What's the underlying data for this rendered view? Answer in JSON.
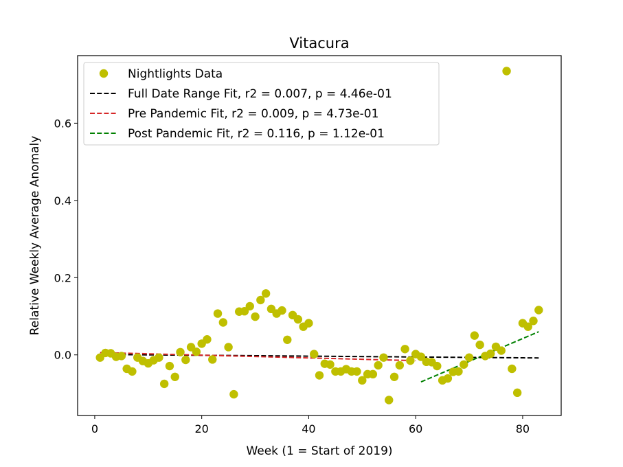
{
  "chart_data": {
    "type": "scatter",
    "title": "Vitacura",
    "xlabel": "Week (1 = Start of 2019)",
    "ylabel": "Relative Weekly Average Anomaly",
    "xlim": [
      -3.2,
      87.2
    ],
    "ylim": [
      -0.157,
      0.775
    ],
    "xticks": [
      0,
      20,
      40,
      60,
      80
    ],
    "yticks": [
      0.0,
      0.2,
      0.4,
      0.6
    ],
    "ytick_labels": [
      "0.0",
      "0.2",
      "0.4",
      "0.6"
    ],
    "grid": false,
    "legend_position": "top-left",
    "series": [
      {
        "name": "Nightlights Data",
        "kind": "scatter",
        "color": "#bfbf00",
        "x": [
          1,
          2,
          3,
          4,
          5,
          6,
          7,
          8,
          9,
          10,
          11,
          12,
          13,
          14,
          15,
          16,
          17,
          18,
          19,
          20,
          21,
          22,
          23,
          24,
          25,
          26,
          27,
          28,
          29,
          30,
          31,
          32,
          33,
          34,
          35,
          36,
          37,
          38,
          39,
          40,
          41,
          42,
          43,
          44,
          45,
          46,
          47,
          48,
          49,
          50,
          51,
          52,
          53,
          54,
          55,
          56,
          57,
          58,
          59,
          60,
          61,
          62,
          63,
          64,
          65,
          66,
          67,
          68,
          69,
          70,
          71,
          72,
          73,
          74,
          75,
          76,
          77,
          78,
          79,
          80,
          81,
          82,
          83
        ],
        "y": [
          -0.007,
          0.005,
          0.004,
          -0.005,
          -0.003,
          -0.036,
          -0.043,
          -0.007,
          -0.016,
          -0.022,
          -0.014,
          -0.007,
          -0.075,
          -0.029,
          -0.057,
          0.007,
          -0.013,
          0.02,
          0.008,
          0.029,
          0.04,
          -0.012,
          0.107,
          0.084,
          0.02,
          -0.102,
          0.112,
          0.113,
          0.126,
          0.099,
          0.142,
          0.159,
          0.119,
          0.107,
          0.115,
          0.039,
          0.103,
          0.092,
          0.073,
          0.082,
          0.002,
          -0.053,
          -0.023,
          -0.025,
          -0.043,
          -0.043,
          -0.037,
          -0.043,
          -0.043,
          -0.066,
          -0.05,
          -0.05,
          -0.027,
          -0.007,
          -0.117,
          -0.057,
          -0.027,
          0.015,
          -0.015,
          0.002,
          -0.005,
          -0.018,
          -0.019,
          -0.029,
          -0.066,
          -0.061,
          -0.044,
          -0.043,
          -0.025,
          -0.007,
          0.05,
          0.026,
          -0.003,
          0.003,
          0.021,
          0.011,
          0.735,
          -0.036,
          -0.098,
          0.082,
          0.073,
          0.088,
          0.116
        ]
      },
      {
        "name": "Full Date Range Fit, r2 = 0.007, p = 4.46e-01",
        "kind": "line",
        "color": "#000000",
        "x": [
          1,
          83
        ],
        "y": [
          0.001,
          -0.008
        ]
      },
      {
        "name": "Pre Pandemic Fit, r2 = 0.009, p = 4.73e-01",
        "kind": "line",
        "color": "#d62728",
        "x": [
          1,
          60
        ],
        "y": [
          0.006,
          -0.015
        ]
      },
      {
        "name": "Post Pandemic Fit, r2 = 0.116, p = 1.12e-01",
        "kind": "line",
        "color": "#008000",
        "x": [
          61,
          83
        ],
        "y": [
          -0.07,
          0.06
        ]
      }
    ]
  }
}
